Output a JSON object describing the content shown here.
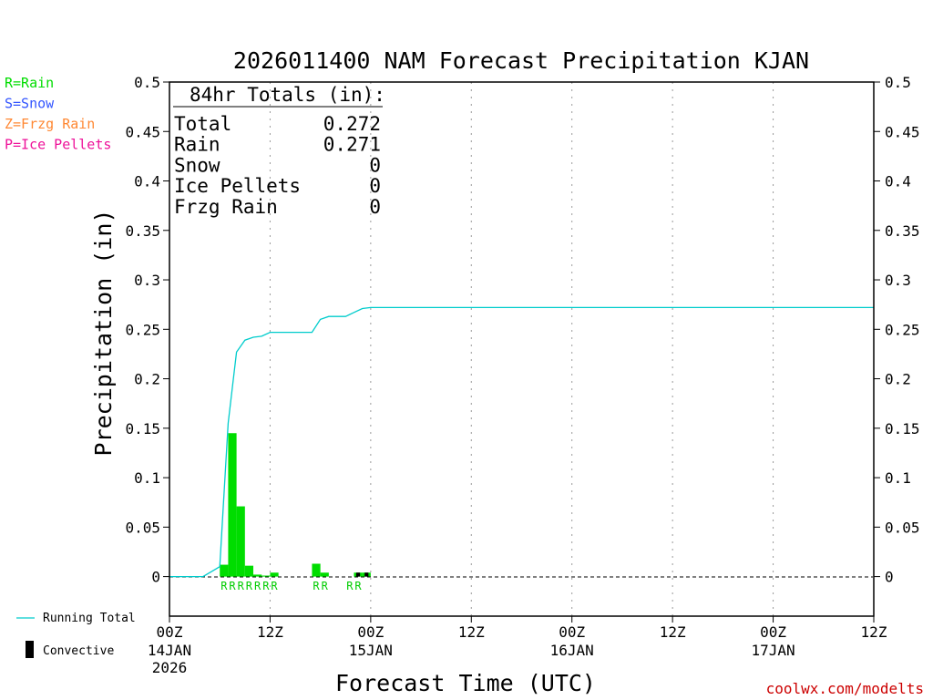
{
  "chart_data": {
    "type": "bar",
    "title": "2026011400 NAM Forecast Precipitation KJAN",
    "xlabel": "Forecast Time (UTC)",
    "ylabel": "Precipitation (in)",
    "ylim": [
      -0.04,
      0.5
    ],
    "yticks": [
      0,
      0.05,
      0.1,
      0.15,
      0.2,
      0.25,
      0.3,
      0.35,
      0.4,
      0.45,
      0.5
    ],
    "ytick_labels": [
      "0",
      "0.05",
      "0.1",
      "0.15",
      "0.2",
      "0.25",
      "0.3",
      "0.35",
      "0.4",
      "0.45",
      "0.5"
    ],
    "xlim_hours": [
      0,
      84
    ],
    "x_ticks": [
      {
        "hour": 0,
        "label": "00Z",
        "sub": [
          "14JAN",
          "2026"
        ]
      },
      {
        "hour": 12,
        "label": "12Z",
        "sub": []
      },
      {
        "hour": 24,
        "label": "00Z",
        "sub": [
          "15JAN"
        ]
      },
      {
        "hour": 36,
        "label": "12Z",
        "sub": []
      },
      {
        "hour": 48,
        "label": "00Z",
        "sub": [
          "16JAN"
        ]
      },
      {
        "hour": 60,
        "label": "12Z",
        "sub": []
      },
      {
        "hour": 72,
        "label": "00Z",
        "sub": [
          "17JAN"
        ]
      },
      {
        "hour": 84,
        "label": "12Z",
        "sub": []
      }
    ],
    "gridlines_hours": [
      12,
      24,
      36,
      48,
      60,
      72
    ],
    "grid": true,
    "series": [
      {
        "name": "Running Total",
        "kind": "line",
        "color": "#00cccc",
        "points": [
          [
            0,
            0
          ],
          [
            1,
            0
          ],
          [
            2,
            0
          ],
          [
            3,
            0
          ],
          [
            4,
            0
          ],
          [
            5,
            0.005
          ],
          [
            6,
            0.01
          ],
          [
            7,
            0.155
          ],
          [
            8,
            0.227
          ],
          [
            9,
            0.239
          ],
          [
            10,
            0.242
          ],
          [
            11,
            0.243
          ],
          [
            12,
            0.247
          ],
          [
            13,
            0.247
          ],
          [
            14,
            0.247
          ],
          [
            15,
            0.247
          ],
          [
            16,
            0.247
          ],
          [
            17,
            0.247
          ],
          [
            18,
            0.26
          ],
          [
            19,
            0.263
          ],
          [
            20,
            0.263
          ],
          [
            21,
            0.263
          ],
          [
            22,
            0.267
          ],
          [
            23,
            0.271
          ],
          [
            24,
            0.272
          ],
          [
            84,
            0.272
          ]
        ]
      },
      {
        "name": "Rain",
        "kind": "bars",
        "color": "#00dd00",
        "bars": [
          [
            6,
            0.012
          ],
          [
            7,
            0.145
          ],
          [
            8,
            0.071
          ],
          [
            9,
            0.011
          ],
          [
            10,
            0.002
          ],
          [
            11,
            0.001
          ],
          [
            12,
            0.004
          ],
          [
            17,
            0.013
          ],
          [
            18,
            0.004
          ],
          [
            22,
            0.004
          ],
          [
            23,
            0.004
          ]
        ]
      },
      {
        "name": "Convective",
        "kind": "bars",
        "color": "#000000",
        "bars": [
          [
            22,
            0.004
          ],
          [
            23,
            0.004
          ]
        ]
      }
    ],
    "precip_type_marks": [
      {
        "hour": 6,
        "label": "R"
      },
      {
        "hour": 7,
        "label": "R"
      },
      {
        "hour": 8,
        "label": "R"
      },
      {
        "hour": 9,
        "label": "R"
      },
      {
        "hour": 10,
        "label": "R"
      },
      {
        "hour": 11,
        "label": "R"
      },
      {
        "hour": 12,
        "label": "R"
      },
      {
        "hour": 17,
        "label": "R"
      },
      {
        "hour": 18,
        "label": "R"
      },
      {
        "hour": 21,
        "label": "R"
      },
      {
        "hour": 22,
        "label": "R"
      }
    ]
  },
  "totals_box": {
    "heading": "84hr Totals (in):",
    "rows": [
      {
        "label": "Total",
        "value": "0.272"
      },
      {
        "label": "Rain",
        "value": "0.271"
      },
      {
        "label": "Snow",
        "value": "0"
      },
      {
        "label": "Ice Pellets",
        "value": "0"
      },
      {
        "label": "Frzg Rain",
        "value": "0"
      }
    ]
  },
  "type_key": [
    {
      "text": "R=Rain",
      "color": "#00dd00"
    },
    {
      "text": "S=Snow",
      "color": "#3355ff"
    },
    {
      "text": "Z=Frzg Rain",
      "color": "#ff8833"
    },
    {
      "text": "P=Ice Pellets",
      "color": "#ee1199"
    }
  ],
  "legend": {
    "running_total": "Running Total",
    "convective": "Convective"
  },
  "source": "coolwx.com/modelts"
}
